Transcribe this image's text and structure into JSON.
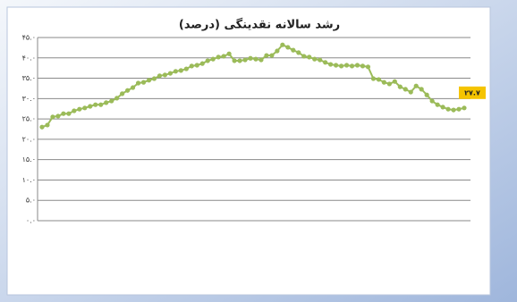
{
  "chart_data": {
    "type": "line",
    "title": "رشد سالانه نقدینگی (درصد)",
    "series": [
      {
        "color": "#9bbb59",
        "values": [
          23.0,
          23.5,
          25.5,
          25.7,
          26.3,
          26.3,
          27.0,
          27.4,
          27.7,
          28.1,
          28.5,
          28.5,
          29.0,
          29.4,
          30.1,
          31.2,
          32.0,
          32.7,
          33.8,
          34.0,
          34.5,
          34.9,
          35.6,
          35.8,
          36.2,
          36.7,
          36.9,
          37.3,
          38.0,
          38.2,
          38.6,
          39.3,
          39.7,
          40.2,
          40.4,
          41.0,
          39.3,
          39.3,
          39.5,
          39.9,
          39.7,
          39.5,
          40.6,
          40.6,
          41.7,
          43.2,
          42.6,
          41.9,
          41.3,
          40.4,
          40.2,
          39.7,
          39.5,
          38.9,
          38.4,
          38.2,
          38.0,
          38.2,
          38.0,
          38.2,
          38.0,
          37.8,
          34.9,
          34.7,
          34.0,
          33.6,
          34.2,
          32.9,
          32.3,
          31.6,
          33.1,
          32.3,
          30.9,
          29.4,
          28.5,
          27.9,
          27.4,
          27.2,
          27.4,
          27.7
        ],
        "value_labels": [
          null,
          null,
          null,
          null,
          null,
          null,
          null,
          null,
          null,
          null,
          null,
          null,
          null,
          null,
          null,
          null,
          null,
          null,
          null,
          null,
          null,
          null,
          null,
          null,
          null,
          null,
          null,
          null,
          null,
          null,
          null,
          null,
          null,
          null,
          null,
          null,
          null,
          null,
          null,
          null,
          null,
          null,
          null,
          null,
          null,
          null,
          null,
          null,
          null,
          null,
          null,
          null,
          null,
          null,
          null,
          null,
          null,
          null,
          null,
          null,
          null,
          null,
          null,
          null,
          null,
          null,
          null,
          null,
          null,
          null,
          null,
          null,
          null,
          null,
          null,
          null,
          null,
          null,
          null,
          "۲۷.۷"
        ]
      }
    ],
    "ylim": [
      0,
      45
    ],
    "yticks": [
      {
        "value": 0,
        "label": "۰.۰"
      },
      {
        "value": 5,
        "label": "۵.۰"
      },
      {
        "value": 10,
        "label": "۱۰.۰"
      },
      {
        "value": 15,
        "label": "۱۵.۰"
      },
      {
        "value": 20,
        "label": "۲۰.۰"
      },
      {
        "value": 25,
        "label": "۲۵.۰"
      },
      {
        "value": 30,
        "label": "۳۰.۰"
      },
      {
        "value": 35,
        "label": "۳۵.۰"
      },
      {
        "value": 40,
        "label": "۴۰.۰"
      },
      {
        "value": 45,
        "label": "۴۵.۰"
      }
    ],
    "grid": true
  }
}
